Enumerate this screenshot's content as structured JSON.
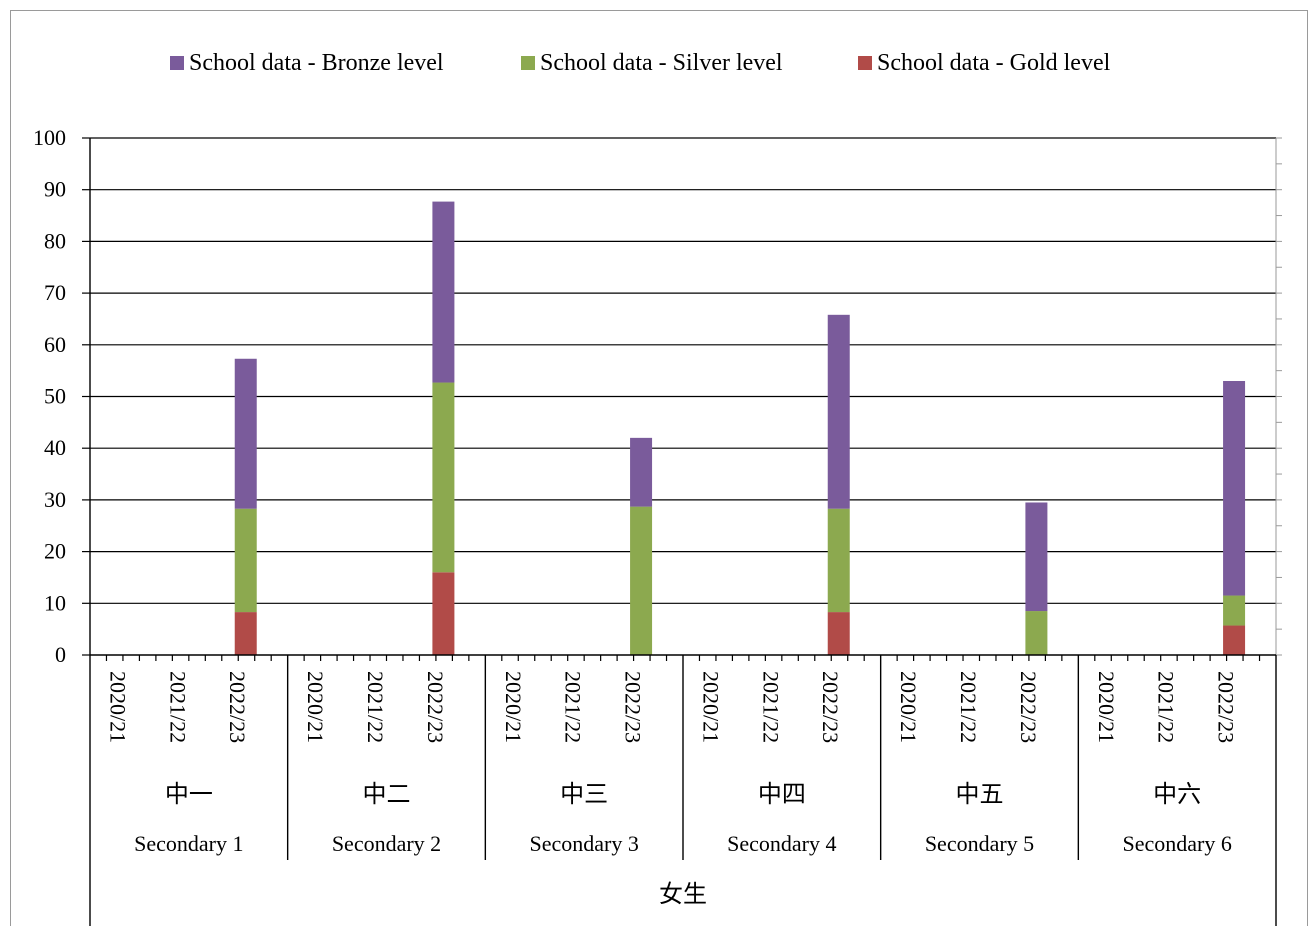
{
  "chart_data": {
    "type": "bar",
    "stacked": true,
    "legend": [
      {
        "name": "School data - Bronze level",
        "color": "#7a5b9b"
      },
      {
        "name": "School data - Silver level",
        "color": "#8ca94f"
      },
      {
        "name": "School data - Gold level",
        "color": "#b14b48"
      }
    ],
    "legend_position": "top",
    "ylim": [
      0,
      100
    ],
    "yticks": [
      0,
      10,
      20,
      30,
      40,
      50,
      60,
      70,
      80,
      90,
      100
    ],
    "grid": true,
    "group_label": "女生",
    "groups": [
      {
        "label_cn": "中一",
        "label_en": "Secondary 1",
        "years": [
          "2020/21",
          "2021/22",
          "2022/23"
        ]
      },
      {
        "label_cn": "中二",
        "label_en": "Secondary 2",
        "years": [
          "2020/21",
          "2021/22",
          "2022/23"
        ]
      },
      {
        "label_cn": "中三",
        "label_en": "Secondary 3",
        "years": [
          "2020/21",
          "2021/22",
          "2022/23"
        ]
      },
      {
        "label_cn": "中四",
        "label_en": "Secondary 4",
        "years": [
          "2020/21",
          "2021/22",
          "2022/23"
        ]
      },
      {
        "label_cn": "中五",
        "label_en": "Secondary 5",
        "years": [
          "2020/21",
          "2021/22",
          "2022/23"
        ]
      },
      {
        "label_cn": "中六",
        "label_en": "Secondary 6",
        "years": [
          "2020/21",
          "2021/22",
          "2022/23"
        ]
      }
    ],
    "series": [
      {
        "name": "School data - Gold level",
        "values": [
          [
            0,
            0,
            8.3
          ],
          [
            0,
            0,
            16.0
          ],
          [
            0,
            0,
            0
          ],
          [
            0,
            0,
            8.3
          ],
          [
            0,
            0,
            0
          ],
          [
            0,
            0,
            5.7
          ]
        ]
      },
      {
        "name": "School data - Silver level",
        "values": [
          [
            0,
            0,
            20.0
          ],
          [
            0,
            0,
            36.7
          ],
          [
            0,
            0,
            28.7
          ],
          [
            0,
            0,
            20.0
          ],
          [
            0,
            0,
            8.5
          ],
          [
            0,
            0,
            5.8
          ]
        ]
      },
      {
        "name": "School data - Bronze level",
        "values": [
          [
            0,
            0,
            29.0
          ],
          [
            0,
            0,
            35.0
          ],
          [
            0,
            0,
            13.3
          ],
          [
            0,
            0,
            37.5
          ],
          [
            0,
            0,
            21.0
          ],
          [
            0,
            0,
            41.5
          ]
        ]
      }
    ]
  }
}
